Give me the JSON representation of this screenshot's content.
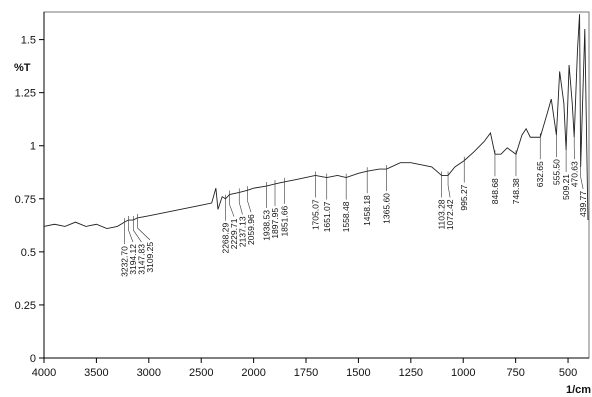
{
  "chart_data": {
    "type": "line",
    "y_label": "%T",
    "x_label": "1/cm",
    "x": [
      4000,
      3900,
      3800,
      3700,
      3600,
      3500,
      3400,
      3300,
      3232.7,
      3194.12,
      3147.83,
      3109.25,
      3000,
      2900,
      2800,
      2700,
      2600,
      2500,
      2400,
      2360,
      2340,
      2300,
      2268.29,
      2229.71,
      2137.13,
      2059.96,
      2000,
      1938.53,
      1897.95,
      1851.66,
      1800,
      1705.07,
      1651.07,
      1600,
      1558.48,
      1500,
      1458.18,
      1400,
      1365.6,
      1300,
      1250,
      1200,
      1150,
      1103.28,
      1072.42,
      1040,
      995.27,
      950,
      900,
      870,
      848.68,
      820,
      790,
      748.38,
      720,
      700,
      680,
      632.65,
      600,
      580,
      555.5,
      540,
      520,
      509.21,
      495,
      480,
      470.63,
      455,
      445,
      439.77,
      420,
      405
    ],
    "values": [
      0.62,
      0.63,
      0.62,
      0.64,
      0.62,
      0.63,
      0.61,
      0.62,
      0.64,
      0.65,
      0.65,
      0.66,
      0.67,
      0.68,
      0.69,
      0.7,
      0.71,
      0.72,
      0.73,
      0.8,
      0.7,
      0.76,
      0.75,
      0.77,
      0.78,
      0.79,
      0.8,
      0.81,
      0.82,
      0.83,
      0.84,
      0.86,
      0.85,
      0.86,
      0.85,
      0.87,
      0.88,
      0.89,
      0.89,
      0.92,
      0.92,
      0.91,
      0.9,
      0.86,
      0.86,
      0.9,
      0.93,
      0.97,
      1.02,
      1.06,
      0.96,
      0.96,
      0.99,
      0.96,
      1.05,
      1.08,
      1.04,
      1.04,
      1.15,
      1.22,
      1.05,
      1.35,
      1.2,
      0.98,
      1.38,
      1.2,
      1.04,
      1.45,
      1.62,
      0.9,
      1.55,
      0.65
    ],
    "color": "#222222",
    "xlim": [
      4000,
      400
    ],
    "xticks": [
      4000,
      3500,
      3000,
      2500,
      2000,
      1750,
      1500,
      1250,
      1000,
      750,
      500
    ],
    "ylim": [
      0,
      1.63
    ],
    "yticks": [
      0,
      0.25,
      0.5,
      0.75,
      1,
      1.25,
      1.5
    ],
    "annotations": [
      {
        "value": 3232.7,
        "label": "3232.70"
      },
      {
        "value": 3194.12,
        "label": "3194.12"
      },
      {
        "value": 3147.83,
        "label": "3147.83"
      },
      {
        "value": 3109.25,
        "label": "3109.25"
      },
      {
        "value": 2268.29,
        "label": "2268.29"
      },
      {
        "value": 2229.71,
        "label": "2229.71"
      },
      {
        "value": 2137.13,
        "label": "2137.13"
      },
      {
        "value": 2059.96,
        "label": "2059.96"
      },
      {
        "value": 1938.53,
        "label": "1938.53"
      },
      {
        "value": 1897.95,
        "label": "1897.95"
      },
      {
        "value": 1851.66,
        "label": "1851.66"
      },
      {
        "value": 1705.07,
        "label": "1705.07"
      },
      {
        "value": 1651.07,
        "label": "1651.07"
      },
      {
        "value": 1558.48,
        "label": "1558.48"
      },
      {
        "value": 1458.18,
        "label": "1458.18"
      },
      {
        "value": 1365.6,
        "label": "1365.60"
      },
      {
        "value": 1103.28,
        "label": "1103.28"
      },
      {
        "value": 1072.42,
        "label": "1072.42"
      },
      {
        "value": 995.27,
        "label": "995.27"
      },
      {
        "value": 848.68,
        "label": "848.68"
      },
      {
        "value": 748.38,
        "label": "748.38"
      },
      {
        "value": 632.65,
        "label": "632.65"
      },
      {
        "value": 555.5,
        "label": "555.50"
      },
      {
        "value": 509.21,
        "label": "509.21"
      },
      {
        "value": 470.63,
        "label": "470.63"
      },
      {
        "value": 439.77,
        "label": "439.77"
      }
    ]
  }
}
